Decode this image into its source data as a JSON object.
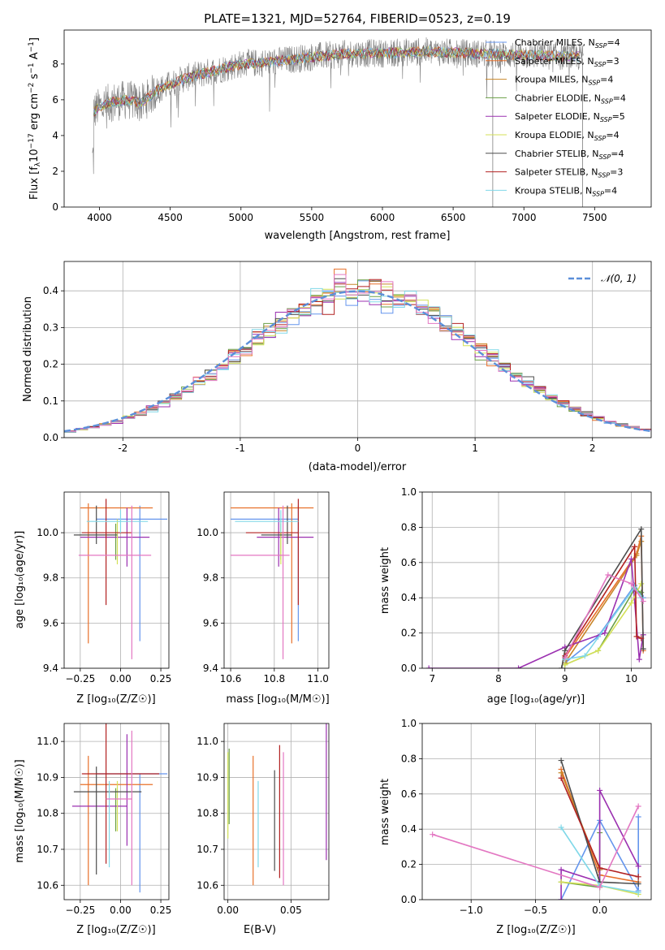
{
  "colors": {
    "c0": "#6495ed",
    "c1": "#e8702a",
    "c2": "#c8862a",
    "c3": "#6a9f45",
    "c4": "#9b30b0",
    "c5": "#d4e157",
    "c6": "#4d4d4d",
    "c7": "#b22222",
    "c8": "#80d8e8",
    "c9": "#e377c2",
    "spec": "#7f7f7f",
    "normal": "#5b8fd9"
  },
  "chart_data": [
    {
      "id": "spectrum",
      "type": "line",
      "title": "PLATE=1321, MJD=52764, FIBERID=0523, z=0.19",
      "xlabel": "wavelength [Angstrom, rest frame]",
      "ylabel": "Flux [f_λ 10^-17 erg cm^-2 s^-1 A^-1]",
      "xlim": [
        3750,
        7900
      ],
      "ylim": [
        0,
        9.9
      ],
      "xticks": [
        4000,
        4500,
        5000,
        5500,
        6000,
        6500,
        7000,
        7500
      ],
      "yticks": [
        0,
        2,
        4,
        6,
        8
      ],
      "legend": [
        {
          "label": "Chabrier MILES, N_SSP=4",
          "base": "Chabrier MILES, N",
          "sub": "SSP",
          "tail": "=4",
          "color": "c0"
        },
        {
          "label": "Salpeter MILES, N_SSP=3",
          "base": "Salpeter MILES, N",
          "sub": "SSP",
          "tail": "=3",
          "color": "c1"
        },
        {
          "label": "Kroupa MILES, N_SSP=4",
          "base": "Kroupa MILES, N",
          "sub": "SSP",
          "tail": "=4",
          "color": "c2"
        },
        {
          "label": "Chabrier ELODIE, N_SSP=4",
          "base": "Chabrier ELODIE, N",
          "sub": "SSP",
          "tail": "=4",
          "color": "c3"
        },
        {
          "label": "Salpeter ELODIE, N_SSP=5",
          "base": "Salpeter ELODIE, N",
          "sub": "SSP",
          "tail": "=5",
          "color": "c4"
        },
        {
          "label": "Kroupa ELODIE, N_SSP=4",
          "base": "Kroupa ELODIE, N",
          "sub": "SSP",
          "tail": "=4",
          "color": "c5"
        },
        {
          "label": "Chabrier STELIB, N_SSP=4",
          "base": "Chabrier STELIB, N",
          "sub": "SSP",
          "tail": "=4",
          "color": "c6"
        },
        {
          "label": "Salpeter STELIB, N_SSP=3",
          "base": "Salpeter STELIB, N",
          "sub": "SSP",
          "tail": "=3",
          "color": "c7"
        },
        {
          "label": "Kroupa STELIB, N_SSP=4",
          "base": "Kroupa STELIB, N",
          "sub": "SSP",
          "tail": "=4",
          "color": "c8"
        }
      ],
      "continuum": {
        "x": [
          3950,
          4000,
          4100,
          4200,
          4300,
          4400,
          4600,
          4800,
          5000,
          5200,
          5500,
          5800,
          6000,
          6300,
          6600,
          7000,
          7400
        ],
        "y": [
          5.3,
          5.6,
          5.9,
          6.0,
          5.8,
          6.5,
          7.2,
          7.6,
          8.0,
          8.1,
          8.4,
          8.6,
          8.6,
          8.7,
          8.6,
          8.5,
          8.4
        ]
      }
    },
    {
      "id": "residuals",
      "type": "line",
      "xlabel": "(data-model)/error",
      "ylabel": "Normed distribution",
      "xlim": [
        -2.5,
        2.5
      ],
      "ylim": [
        0,
        0.48
      ],
      "xticks": [
        -2,
        -1,
        0,
        1,
        2
      ],
      "yticks": [
        0.0,
        0.1,
        0.2,
        0.3,
        0.4
      ],
      "legend_label": "𝒩(0, 1)"
    },
    {
      "id": "age-vs-Z",
      "type": "scatter",
      "xlabel": "Z [log₁₀(Z/Z☉)]",
      "ylabel": "age  [log₁₀(age/yr)]",
      "xlim": [
        -0.35,
        0.3
      ],
      "ylim": [
        9.4,
        10.18
      ],
      "xticks": [
        -0.25,
        0.0,
        0.25
      ],
      "xticklabels": [
        "−0.25",
        "0.00",
        "0.25"
      ],
      "yticks": [
        9.4,
        9.6,
        9.8,
        10.0
      ],
      "yticklabels": [
        "9.4",
        "9.6",
        "9.8",
        "10.0"
      ],
      "points": [
        {
          "color": "c0",
          "x": 0.12,
          "xerr": [
            0.27,
            0.17
          ],
          "y": 10.06,
          "yerr": [
            0.54,
            0.06
          ]
        },
        {
          "color": "c1",
          "x": -0.2,
          "xerr": [
            0.05,
            0.4
          ],
          "y": 10.11,
          "yerr": [
            0.6,
            0.02
          ]
        },
        {
          "color": "c2",
          "x": -0.13,
          "xerr": [
            0.0,
            0.0
          ],
          "y": 10.05,
          "yerr": [
            0.0,
            0.0
          ]
        },
        {
          "color": "c3",
          "x": -0.03,
          "xerr": [
            0.0,
            0.0
          ],
          "y": 9.98,
          "yerr": [
            0.1,
            0.06
          ]
        },
        {
          "color": "c4",
          "x": 0.04,
          "xerr": [
            0.29,
            0.14
          ],
          "y": 9.98,
          "yerr": [
            0.13,
            0.13
          ]
        },
        {
          "color": "c5",
          "x": -0.02,
          "xerr": [
            0.0,
            0.0
          ],
          "y": 9.96,
          "yerr": [
            0.1,
            0.1
          ]
        },
        {
          "color": "c6",
          "x": -0.15,
          "xerr": [
            0.14,
            0.13
          ],
          "y": 9.99,
          "yerr": [
            0.04,
            0.13
          ]
        },
        {
          "color": "c7",
          "x": -0.09,
          "xerr": [
            0.15,
            0.16
          ],
          "y": 10.0,
          "yerr": [
            0.32,
            0.15
          ]
        },
        {
          "color": "c8",
          "x": 0.0,
          "xerr": [
            0.21,
            0.17
          ],
          "y": 10.05,
          "yerr": [
            0.05,
            0.05
          ]
        },
        {
          "color": "c9",
          "x": 0.07,
          "xerr": [
            0.33,
            0.12
          ],
          "y": 9.9,
          "yerr": [
            0.46,
            0.22
          ]
        }
      ]
    },
    {
      "id": "age-vs-mass",
      "type": "scatter",
      "xlabel": "mass [log₁₀(M/M☉)]",
      "xlim": [
        10.57,
        11.05
      ],
      "ylim": [
        9.4,
        10.18
      ],
      "xticks": [
        10.6,
        10.8,
        11.0
      ],
      "xticklabels": [
        "10.6",
        "10.8",
        "11.0"
      ],
      "yticks": [
        9.4,
        9.6,
        9.8,
        10.0
      ],
      "yticklabels": [
        "9.4",
        "9.6",
        "9.8",
        "10.0"
      ],
      "points": [
        {
          "color": "c0",
          "x": 10.91,
          "xerr": [
            0.31,
            0.0
          ],
          "y": 10.06,
          "yerr": [
            0.54,
            0.06
          ]
        },
        {
          "color": "c1",
          "x": 10.88,
          "xerr": [
            0.28,
            0.1
          ],
          "y": 10.11,
          "yerr": [
            0.6,
            0.02
          ]
        },
        {
          "color": "c2",
          "x": 10.86,
          "xerr": [
            0.0,
            0.0
          ],
          "y": 10.05,
          "yerr": [
            0.0,
            0.0
          ]
        },
        {
          "color": "c3",
          "x": 10.83,
          "xerr": [
            0.0,
            0.0
          ],
          "y": 9.98,
          "yerr": [
            0.1,
            0.06
          ]
        },
        {
          "color": "c4",
          "x": 10.82,
          "xerr": [
            0.1,
            0.16
          ],
          "y": 9.98,
          "yerr": [
            0.13,
            0.13
          ]
        },
        {
          "color": "c5",
          "x": 10.83,
          "xerr": [
            0.0,
            0.0
          ],
          "y": 9.96,
          "yerr": [
            0.1,
            0.1
          ]
        },
        {
          "color": "c6",
          "x": 10.86,
          "xerr": [
            0.12,
            0.02
          ],
          "y": 9.99,
          "yerr": [
            0.04,
            0.13
          ]
        },
        {
          "color": "c7",
          "x": 10.91,
          "xerr": [
            0.24,
            0.0
          ],
          "y": 10.0,
          "yerr": [
            0.32,
            0.15
          ]
        },
        {
          "color": "c8",
          "x": 10.83,
          "xerr": [
            0.21,
            0.08
          ],
          "y": 10.05,
          "yerr": [
            0.05,
            0.05
          ]
        },
        {
          "color": "c9",
          "x": 10.84,
          "xerr": [
            0.24,
            0.03
          ],
          "y": 9.9,
          "yerr": [
            0.46,
            0.22
          ]
        }
      ]
    },
    {
      "id": "age-weights",
      "type": "line",
      "xlabel": "age  [log₁₀(age/yr)]",
      "ylabel": "mass weight",
      "xlim": [
        6.85,
        10.3
      ],
      "ylim": [
        0,
        1.0
      ],
      "xticks": [
        7,
        8,
        9,
        10
      ],
      "xticklabels": [
        "7",
        "8",
        "9",
        "10"
      ],
      "yticks": [
        0,
        0.2,
        0.4,
        0.6,
        0.8,
        1.0
      ],
      "yticklabels": [
        "0.0",
        "0.2",
        "0.4",
        "0.6",
        "0.8",
        "1.0"
      ],
      "series": [
        {
          "color": "c0",
          "x": [
            9.0,
            9.5,
            10.05,
            10.18
          ],
          "y": [
            0.03,
            0.18,
            0.47,
            0.4
          ]
        },
        {
          "color": "c1",
          "x": [
            9.0,
            10.08,
            10.15,
            10.18
          ],
          "y": [
            0.06,
            0.65,
            0.75,
            0.1
          ]
        },
        {
          "color": "c2",
          "x": [
            9.0,
            10.08,
            10.15
          ],
          "y": [
            0.03,
            0.64,
            0.72
          ]
        },
        {
          "color": "c3",
          "x": [
            9.0,
            9.5,
            10.05,
            10.15
          ],
          "y": [
            0.02,
            0.1,
            0.45,
            0.43
          ]
        },
        {
          "color": "c4",
          "x": [
            6.95,
            8.3,
            9.0,
            9.6,
            10.0,
            10.12,
            10.18
          ],
          "y": [
            0.0,
            0.0,
            0.12,
            0.2,
            0.62,
            0.05,
            0.19
          ]
        },
        {
          "color": "c5",
          "x": [
            9.0,
            9.5,
            10.0,
            10.15
          ],
          "y": [
            0.02,
            0.1,
            0.37,
            0.48
          ]
        },
        {
          "color": "c6",
          "x": [
            8.95,
            9.0,
            10.15,
            10.18
          ],
          "y": [
            0.0,
            0.1,
            0.79,
            0.11
          ]
        },
        {
          "color": "c7",
          "x": [
            9.0,
            10.05,
            10.08,
            10.15
          ],
          "y": [
            0.07,
            0.69,
            0.18,
            0.17
          ]
        },
        {
          "color": "c8",
          "x": [
            9.0,
            9.3,
            10.05,
            10.15
          ],
          "y": [
            0.05,
            0.07,
            0.46,
            0.4
          ]
        },
        {
          "color": "c9",
          "x": [
            9.0,
            9.65,
            10.0,
            10.18
          ],
          "y": [
            0.06,
            0.53,
            0.48,
            0.38
          ]
        }
      ]
    },
    {
      "id": "mass-vs-Z",
      "type": "scatter",
      "xlabel": "Z [log₁₀(Z/Z☉)]",
      "ylabel": "mass [log₁₀(M/M☉)]",
      "xlim": [
        -0.35,
        0.3
      ],
      "ylim": [
        10.56,
        11.05
      ],
      "xticks": [
        -0.25,
        0.0,
        0.25
      ],
      "xticklabels": [
        "−0.25",
        "0.00",
        "0.25"
      ],
      "yticks": [
        10.6,
        10.7,
        10.8,
        10.9,
        11.0
      ],
      "yticklabels": [
        "10.6",
        "10.7",
        "10.8",
        "10.9",
        "11.0"
      ],
      "points": [
        {
          "color": "c0",
          "x": 0.12,
          "xerr": [
            0.27,
            0.17
          ],
          "y": 10.91,
          "yerr": [
            0.33,
            0.0
          ]
        },
        {
          "color": "c1",
          "x": -0.2,
          "xerr": [
            0.05,
            0.4
          ],
          "y": 10.88,
          "yerr": [
            0.28,
            0.08
          ]
        },
        {
          "color": "c2",
          "x": -0.13,
          "xerr": [
            0.0,
            0.0
          ],
          "y": 10.86,
          "yerr": [
            0.0,
            0.0
          ]
        },
        {
          "color": "c3",
          "x": -0.03,
          "xerr": [
            0.0,
            0.0
          ],
          "y": 10.81,
          "yerr": [
            0.06,
            0.06
          ]
        },
        {
          "color": "c4",
          "x": 0.04,
          "xerr": [
            0.34,
            0.0
          ],
          "y": 10.82,
          "yerr": [
            0.11,
            0.2
          ]
        },
        {
          "color": "c5",
          "x": -0.02,
          "xerr": [
            0.0,
            0.0
          ],
          "y": 10.82,
          "yerr": [
            0.07,
            0.07
          ]
        },
        {
          "color": "c6",
          "x": -0.15,
          "xerr": [
            0.14,
            0.28
          ],
          "y": 10.86,
          "yerr": [
            0.23,
            0.07
          ]
        },
        {
          "color": "c7",
          "x": -0.09,
          "xerr": [
            0.15,
            0.33
          ],
          "y": 10.91,
          "yerr": [
            0.25,
            0.18
          ]
        },
        {
          "color": "c8",
          "x": -0.07,
          "xerr": [
            0.0,
            0.0
          ],
          "y": 10.77,
          "yerr": [
            0.12,
            0.12
          ]
        },
        {
          "color": "c9",
          "x": 0.07,
          "xerr": [
            0.16,
            0.0
          ],
          "y": 10.84,
          "yerr": [
            0.24,
            0.19
          ]
        }
      ]
    },
    {
      "id": "mass-vs-ebv",
      "type": "scatter",
      "xlabel": "E(B-V)",
      "xlim": [
        -0.003,
        0.08
      ],
      "ylim": [
        10.56,
        11.05
      ],
      "xticks": [
        0.0,
        0.05
      ],
      "xticklabels": [
        "0.00",
        "0.05"
      ],
      "yticks": [
        10.6,
        10.7,
        10.8,
        10.9,
        11.0
      ],
      "yticklabels": [
        "10.6",
        "10.7",
        "10.8",
        "10.9",
        "11.0"
      ],
      "points": [
        {
          "color": "c5",
          "x": 0.0,
          "y": 10.84,
          "yerr": [
            0.11,
            0.13
          ]
        },
        {
          "color": "c3",
          "x": 0.001,
          "y": 10.87,
          "yerr": [
            0.1,
            0.11
          ]
        },
        {
          "color": "c1",
          "x": 0.02,
          "y": 10.78,
          "yerr": [
            0.18,
            0.18
          ]
        },
        {
          "color": "c8",
          "x": 0.024,
          "y": 10.77,
          "yerr": [
            0.12,
            0.12
          ]
        },
        {
          "color": "c6",
          "x": 0.037,
          "y": 10.78,
          "yerr": [
            0.14,
            0.14
          ]
        },
        {
          "color": "c7",
          "x": 0.041,
          "y": 10.82,
          "yerr": [
            0.2,
            0.17
          ]
        },
        {
          "color": "c9",
          "x": 0.044,
          "y": 10.79,
          "yerr": [
            0.19,
            0.18
          ]
        },
        {
          "color": "c4",
          "x": 0.078,
          "y": 10.89,
          "yerr": [
            0.22,
            0.23
          ]
        }
      ]
    },
    {
      "id": "Z-weights",
      "type": "line",
      "xlabel": "Z [log₁₀(Z/Z☉)]",
      "ylabel": "mass weight",
      "xlim": [
        -1.38,
        0.4
      ],
      "ylim": [
        0,
        1.0
      ],
      "xticks": [
        -1.0,
        -0.5,
        0.0
      ],
      "xticklabels": [
        "−1.0",
        "−0.5",
        "0.0"
      ],
      "yticks": [
        0,
        0.2,
        0.4,
        0.6,
        0.8,
        1.0
      ],
      "yticklabels": [
        "0.0",
        "0.2",
        "0.4",
        "0.6",
        "0.8",
        "1.0"
      ],
      "series": [
        {
          "color": "c0",
          "x": [
            -0.3,
            0.0,
            0.3,
            0.3
          ],
          "y": [
            0.0,
            0.45,
            0.05,
            0.47
          ]
        },
        {
          "color": "c1",
          "x": [
            -0.3,
            0.0,
            0.3
          ],
          "y": [
            0.74,
            0.14,
            0.1
          ]
        },
        {
          "color": "c2",
          "x": [
            -0.3,
            0.0
          ],
          "y": [
            0.72,
            0.17
          ]
        },
        {
          "color": "c3",
          "x": [
            -0.3,
            0.0,
            0.0
          ],
          "y": [
            0.1,
            0.07,
            0.38
          ]
        },
        {
          "color": "c4",
          "x": [
            -0.3,
            -0.3,
            0.0,
            0.0,
            0.3
          ],
          "y": [
            0.0,
            0.17,
            0.1,
            0.62,
            0.19
          ]
        },
        {
          "color": "c5",
          "x": [
            -0.3,
            0.0,
            0.3
          ],
          "y": [
            0.1,
            0.08,
            0.03
          ]
        },
        {
          "color": "c6",
          "x": [
            -0.3,
            0.0,
            0.3
          ],
          "y": [
            0.79,
            0.1,
            0.09
          ]
        },
        {
          "color": "c7",
          "x": [
            -0.3,
            0.0,
            0.3
          ],
          "y": [
            0.69,
            0.18,
            0.13
          ]
        },
        {
          "color": "c8",
          "x": [
            -0.3,
            0.0,
            0.3
          ],
          "y": [
            0.41,
            0.08,
            0.04
          ]
        },
        {
          "color": "c9",
          "x": [
            -1.3,
            0.0,
            0.3
          ],
          "y": [
            0.37,
            0.07,
            0.53
          ]
        }
      ]
    }
  ]
}
